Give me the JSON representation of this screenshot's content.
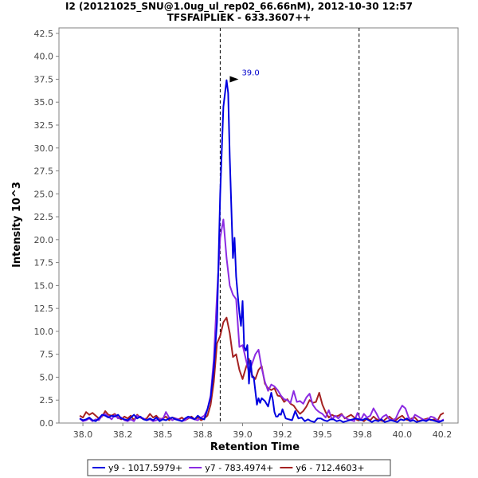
{
  "chart_data": {
    "type": "line",
    "title": "I2 (20121025_SNU@1.0ug_ul_rep02_66.66nM), 2012-10-30 12:57",
    "subtitle": "TFSFAIPLIEK - 633.3607++",
    "xlabel": "Retention Time",
    "ylabel": "Intensity 10^3",
    "xlim": [
      37.85,
      40.35
    ],
    "ylim": [
      0,
      43.1
    ],
    "x_ticks": [
      "38.0",
      "38.2",
      "38.5",
      "38.8",
      "39.0",
      "39.2",
      "39.5",
      "39.8",
      "40.0",
      "40.2"
    ],
    "x_tick_values": [
      38.0,
      38.25,
      38.5,
      38.75,
      39.0,
      39.25,
      39.5,
      39.75,
      40.0,
      40.25
    ],
    "y_ticks": [
      "0.0",
      "2.5",
      "5.0",
      "7.5",
      "10.0",
      "12.5",
      "15.0",
      "17.5",
      "20.0",
      "22.5",
      "25.0",
      "27.5",
      "30.0",
      "32.5",
      "35.0",
      "37.5",
      "40.0",
      "42.5"
    ],
    "y_tick_values": [
      0,
      2.5,
      5,
      7.5,
      10,
      12.5,
      15,
      17.5,
      20,
      22.5,
      25,
      27.5,
      30,
      32.5,
      35,
      37.5,
      40,
      42.5
    ],
    "integration_bounds": [
      38.86,
      39.73
    ],
    "grid": false,
    "legend_position": "bottom",
    "annotation": {
      "text": "39.0",
      "x": 38.98,
      "y": 37.5,
      "color": "#0000cc"
    },
    "series": [
      {
        "name": "y9 - 1017.5979+",
        "color": "#0000e0",
        "x": [
          37.98,
          38.0,
          38.02,
          38.04,
          38.06,
          38.08,
          38.1,
          38.12,
          38.14,
          38.16,
          38.18,
          38.2,
          38.22,
          38.24,
          38.26,
          38.28,
          38.3,
          38.32,
          38.34,
          38.36,
          38.38,
          38.4,
          38.42,
          38.44,
          38.46,
          38.48,
          38.5,
          38.52,
          38.54,
          38.56,
          38.58,
          38.6,
          38.62,
          38.64,
          38.66,
          38.68,
          38.7,
          38.72,
          38.74,
          38.76,
          38.78,
          38.8,
          38.82,
          38.84,
          38.86,
          38.88,
          38.9,
          38.91,
          38.92,
          38.93,
          38.94,
          38.95,
          38.96,
          38.97,
          38.98,
          38.99,
          39.0,
          39.01,
          39.02,
          39.03,
          39.04,
          39.05,
          39.06,
          39.07,
          39.08,
          39.09,
          39.1,
          39.11,
          39.12,
          39.14,
          39.16,
          39.18,
          39.19,
          39.2,
          39.21,
          39.22,
          39.23,
          39.24,
          39.25,
          39.27,
          39.29,
          39.31,
          39.33,
          39.35,
          39.37,
          39.39,
          39.41,
          39.43,
          39.45,
          39.47,
          39.49,
          39.51,
          39.53,
          39.55,
          39.57,
          39.59,
          39.61,
          39.63,
          39.65,
          39.67,
          39.69,
          39.71,
          39.73,
          39.75,
          39.77,
          39.79,
          39.81,
          39.83,
          39.85,
          39.87,
          39.89,
          39.91,
          39.93,
          39.95,
          39.97,
          39.99,
          40.01,
          40.03,
          40.05,
          40.07,
          40.09,
          40.11,
          40.13,
          40.15,
          40.17,
          40.19,
          40.21,
          40.23,
          40.26
        ],
        "y": [
          0.5,
          0.3,
          0.4,
          0.6,
          0.3,
          0.2,
          0.5,
          0.9,
          0.8,
          0.6,
          0.8,
          0.7,
          0.9,
          0.5,
          0.4,
          0.3,
          0.6,
          0.9,
          0.5,
          0.7,
          0.4,
          0.3,
          0.5,
          0.3,
          0.6,
          0.2,
          0.4,
          0.3,
          0.5,
          0.6,
          0.4,
          0.3,
          0.2,
          0.5,
          0.7,
          0.6,
          0.4,
          0.8,
          0.5,
          0.4,
          1.5,
          2.8,
          6.0,
          11.0,
          25.0,
          34.5,
          37.4,
          36.0,
          29.0,
          23.5,
          18.0,
          20.2,
          16.0,
          14.0,
          12.0,
          10.6,
          13.3,
          8.3,
          7.9,
          8.5,
          4.3,
          6.8,
          5.0,
          5.0,
          3.5,
          2.0,
          2.7,
          2.2,
          2.7,
          2.4,
          1.8,
          3.3,
          2.5,
          1.2,
          0.7,
          0.7,
          1.0,
          0.9,
          1.5,
          0.5,
          0.4,
          0.3,
          1.3,
          0.5,
          0.6,
          0.2,
          0.4,
          0.2,
          0.1,
          0.5,
          0.5,
          0.3,
          0.2,
          0.4,
          0.4,
          0.2,
          0.3,
          0.1,
          0.2,
          0.3,
          0.4,
          0.5,
          0.4,
          0.3,
          0.5,
          0.3,
          0.1,
          0.3,
          0.2,
          0.4,
          0.1,
          0.2,
          0.3,
          0.2,
          0.1,
          0.4,
          0.3,
          0.5,
          0.2,
          0.3,
          0.1,
          0.2,
          0.3,
          0.2,
          0.4,
          0.3,
          0.2,
          0.1,
          0.3
        ]
      },
      {
        "name": "y7 - 783.4974+",
        "color": "#8b2be2",
        "x": [
          37.98,
          38.0,
          38.02,
          38.04,
          38.06,
          38.08,
          38.1,
          38.12,
          38.14,
          38.16,
          38.18,
          38.2,
          38.22,
          38.24,
          38.26,
          38.28,
          38.3,
          38.32,
          38.34,
          38.36,
          38.38,
          38.4,
          38.42,
          38.44,
          38.46,
          38.48,
          38.5,
          38.52,
          38.54,
          38.56,
          38.58,
          38.6,
          38.62,
          38.64,
          38.66,
          38.68,
          38.7,
          38.72,
          38.74,
          38.76,
          38.78,
          38.8,
          38.82,
          38.84,
          38.86,
          38.88,
          38.9,
          38.92,
          38.94,
          38.96,
          38.98,
          39.0,
          39.02,
          39.04,
          39.06,
          39.08,
          39.1,
          39.12,
          39.14,
          39.16,
          39.18,
          39.2,
          39.22,
          39.24,
          39.26,
          39.28,
          39.3,
          39.32,
          39.34,
          39.36,
          39.38,
          39.4,
          39.42,
          39.44,
          39.46,
          39.48,
          39.5,
          39.52,
          39.54,
          39.56,
          39.58,
          39.6,
          39.62,
          39.64,
          39.66,
          39.68,
          39.7,
          39.72,
          39.74,
          39.76,
          39.78,
          39.8,
          39.82,
          39.84,
          39.86,
          39.88,
          39.9,
          39.92,
          39.94,
          39.96,
          39.98,
          40.0,
          40.02,
          40.04,
          40.06,
          40.08,
          40.1,
          40.12,
          40.14,
          40.16,
          40.18,
          40.2,
          40.22,
          40.24,
          40.26
        ],
        "y": [
          0.5,
          0.2,
          0.3,
          0.5,
          0.2,
          0.4,
          0.3,
          0.8,
          1.0,
          0.7,
          0.4,
          0.9,
          0.5,
          0.6,
          0.3,
          0.2,
          0.4,
          0.2,
          0.8,
          0.6,
          0.5,
          0.3,
          0.4,
          0.2,
          0.3,
          0.5,
          0.4,
          1.2,
          0.6,
          0.3,
          0.5,
          0.4,
          0.2,
          0.3,
          0.6,
          0.5,
          0.4,
          0.3,
          0.6,
          0.8,
          1.5,
          3.0,
          7.0,
          14.0,
          20.2,
          22.2,
          18.0,
          15.0,
          14.0,
          13.5,
          8.3,
          8.5,
          7.0,
          5.5,
          6.5,
          7.5,
          8.0,
          6.0,
          4.5,
          3.5,
          4.2,
          4.0,
          3.6,
          3.0,
          2.6,
          2.5,
          2.2,
          3.5,
          2.3,
          2.4,
          2.1,
          2.8,
          3.2,
          2.0,
          1.5,
          1.2,
          1.0,
          0.6,
          1.4,
          0.4,
          0.8,
          0.5,
          0.9,
          0.6,
          0.4,
          0.3,
          0.2,
          1.1,
          0.3,
          1.0,
          0.6,
          0.8,
          1.6,
          1.0,
          0.3,
          0.7,
          0.9,
          0.4,
          0.3,
          0.5,
          1.3,
          1.9,
          1.6,
          0.6,
          0.3,
          0.9,
          0.7,
          0.5,
          0.3,
          0.4,
          0.7,
          0.6,
          0.3,
          0.2,
          0.4
        ]
      },
      {
        "name": "y6 - 712.4603+",
        "color": "#a52222",
        "x": [
          37.98,
          38.0,
          38.02,
          38.04,
          38.06,
          38.08,
          38.1,
          38.12,
          38.14,
          38.16,
          38.18,
          38.2,
          38.22,
          38.24,
          38.26,
          38.28,
          38.3,
          38.32,
          38.34,
          38.36,
          38.38,
          38.4,
          38.42,
          38.44,
          38.46,
          38.48,
          38.5,
          38.52,
          38.54,
          38.56,
          38.58,
          38.6,
          38.62,
          38.64,
          38.66,
          38.68,
          38.7,
          38.72,
          38.74,
          38.76,
          38.78,
          38.8,
          38.82,
          38.84,
          38.86,
          38.88,
          38.9,
          38.92,
          38.94,
          38.96,
          38.98,
          39.0,
          39.02,
          39.04,
          39.06,
          39.08,
          39.1,
          39.12,
          39.14,
          39.16,
          39.18,
          39.2,
          39.22,
          39.24,
          39.26,
          39.28,
          39.3,
          39.32,
          39.34,
          39.36,
          39.38,
          39.4,
          39.42,
          39.44,
          39.46,
          39.48,
          39.5,
          39.52,
          39.54,
          39.56,
          39.58,
          39.6,
          39.62,
          39.64,
          39.66,
          39.68,
          39.7,
          39.72,
          39.74,
          39.76,
          39.78,
          39.8,
          39.82,
          39.84,
          39.86,
          39.88,
          39.9,
          39.92,
          39.94,
          39.96,
          39.98,
          40.0,
          40.02,
          40.04,
          40.06,
          40.08,
          40.1,
          40.12,
          40.14,
          40.16,
          40.18,
          40.2,
          40.22,
          40.24,
          40.26
        ],
        "y": [
          0.8,
          0.6,
          1.2,
          0.9,
          1.1,
          0.8,
          0.5,
          0.7,
          1.3,
          0.9,
          0.8,
          1.0,
          0.6,
          0.4,
          0.7,
          0.5,
          0.8,
          0.3,
          0.9,
          0.6,
          0.4,
          0.5,
          1.0,
          0.6,
          0.8,
          0.4,
          0.5,
          0.7,
          0.3,
          0.6,
          0.5,
          0.4,
          0.6,
          0.3,
          0.5,
          0.7,
          0.4,
          0.6,
          0.3,
          0.5,
          0.8,
          2.0,
          4.5,
          8.7,
          9.5,
          11.0,
          11.5,
          9.8,
          7.2,
          7.5,
          5.8,
          4.8,
          6.0,
          7.0,
          5.2,
          4.8,
          5.8,
          6.2,
          4.3,
          3.8,
          3.6,
          3.8,
          3.0,
          2.9,
          2.3,
          2.6,
          2.1,
          1.9,
          1.4,
          1.0,
          1.3,
          1.8,
          2.5,
          2.2,
          2.3,
          3.3,
          2.0,
          1.2,
          0.6,
          0.9,
          0.7,
          0.8,
          1.0,
          0.5,
          0.7,
          0.9,
          0.6,
          0.3,
          0.4,
          0.2,
          0.5,
          0.3,
          0.7,
          0.4,
          0.3,
          0.2,
          0.5,
          0.7,
          0.4,
          0.3,
          0.6,
          0.8,
          0.4,
          0.3,
          0.5,
          0.6,
          0.2,
          0.3,
          0.4,
          0.5,
          0.3,
          0.4,
          0.2,
          0.9,
          1.1
        ]
      }
    ]
  }
}
